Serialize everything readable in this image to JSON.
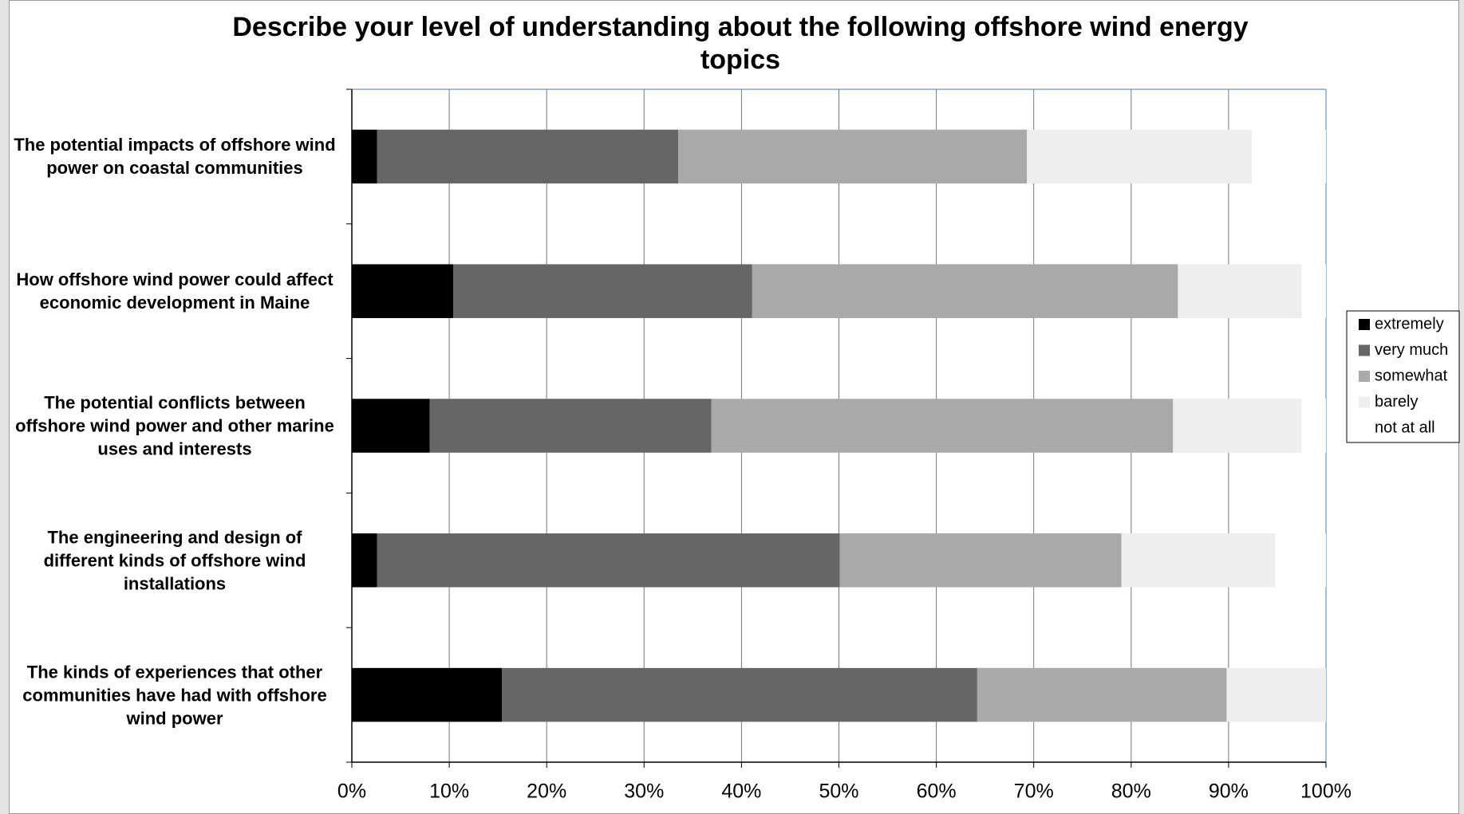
{
  "chart_data": {
    "type": "stacked-barh",
    "title": "Describe your level of understanding about the following offshore wind energy topics",
    "categories": [
      "The potential impacts of offshore wind power on coastal communities",
      "How offshore wind power could affect economic development in Maine",
      "The potential conflicts between offshore wind power and other marine uses and interests",
      "The engineering and design of different kinds of offshore wind installations",
      "The kinds of experiences that other communities have had with offshore wind power"
    ],
    "series": [
      {
        "name": "extremely",
        "color": "#000000",
        "values": [
          2.6,
          10.4,
          8.0,
          2.6,
          15.4
        ]
      },
      {
        "name": "very much",
        "color": "#666666",
        "values": [
          30.9,
          30.7,
          28.9,
          47.5,
          48.8
        ]
      },
      {
        "name": "somewhat",
        "color": "#a9a9a9",
        "values": [
          35.8,
          43.7,
          47.4,
          28.9,
          25.6
        ]
      },
      {
        "name": "barely",
        "color": "#eeeeee",
        "values": [
          23.1,
          12.7,
          13.2,
          15.8,
          10.2
        ]
      },
      {
        "name": "not at all",
        "color": "#ffffff",
        "values": [
          7.6,
          2.5,
          2.5,
          5.2,
          0
        ]
      }
    ],
    "xlim": [
      0,
      100
    ],
    "xticks": [
      {
        "value": 0,
        "label": "0%"
      },
      {
        "value": 10,
        "label": "10%"
      },
      {
        "value": 20,
        "label": "20%"
      },
      {
        "value": 30,
        "label": "30%"
      },
      {
        "value": 40,
        "label": "40%"
      },
      {
        "value": 50,
        "label": "50%"
      },
      {
        "value": 60,
        "label": "60%"
      },
      {
        "value": 70,
        "label": "70%"
      },
      {
        "value": 80,
        "label": "80%"
      },
      {
        "value": 90,
        "label": "90%"
      },
      {
        "value": 100,
        "label": "100%"
      }
    ],
    "grid": true,
    "legend": "right"
  }
}
